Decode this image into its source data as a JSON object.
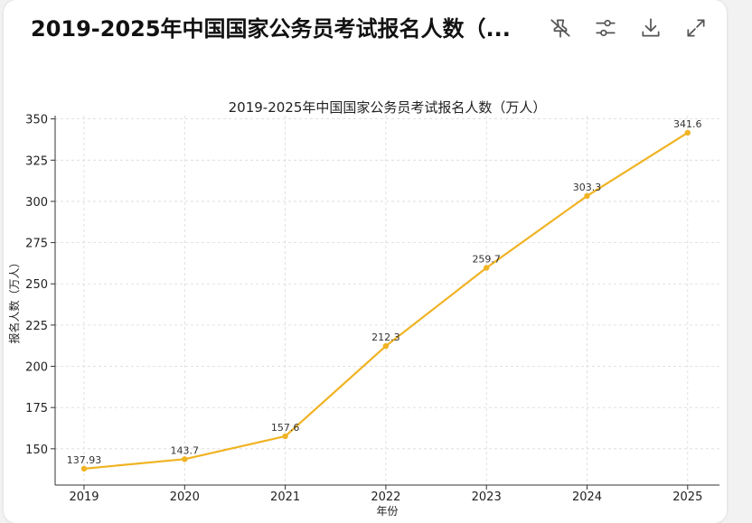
{
  "header": {
    "title": "2019-2025年中国国家公务员考试报名人数（...",
    "toolbar": [
      {
        "name": "pin-off-icon"
      },
      {
        "name": "sliders-icon"
      },
      {
        "name": "download-icon"
      },
      {
        "name": "expand-icon"
      }
    ]
  },
  "chart_data": {
    "type": "line",
    "title": "2019-2025年中国国家公务员考试报名人数（万人）",
    "xlabel": "年份",
    "ylabel": "报名人数（万人）",
    "categories": [
      "2019",
      "2020",
      "2021",
      "2022",
      "2023",
      "2024",
      "2025"
    ],
    "values": [
      137.93,
      143.7,
      157.6,
      212.3,
      259.7,
      303.3,
      341.6
    ],
    "data_labels": [
      "137.93",
      "143.7",
      "157.6",
      "212.3",
      "259.7",
      "303.3",
      "341.6"
    ],
    "ylim": [
      128,
      352
    ],
    "yticks": [
      150,
      175,
      200,
      225,
      250,
      275,
      300,
      325,
      350
    ],
    "grid": true,
    "line_color": "#f0b323",
    "marker_color": "#f0b323"
  }
}
